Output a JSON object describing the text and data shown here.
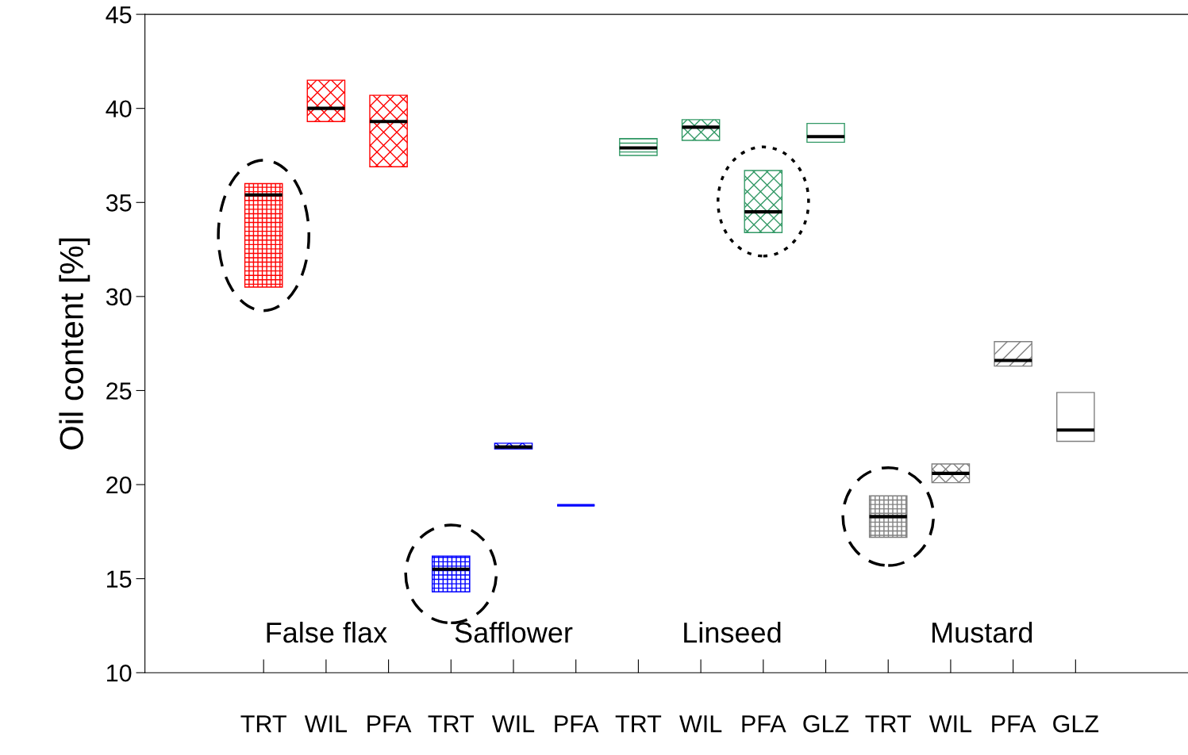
{
  "chart_data": {
    "type": "box",
    "categories": [
      "TRT",
      "WIL",
      "PFA",
      "TRT",
      "WIL",
      "PFA",
      "TRT",
      "WIL",
      "PFA",
      "GLZ",
      "TRT",
      "WIL",
      "PFA",
      "GLZ"
    ],
    "boxes": [
      {
        "low": 30.5,
        "q1": 30.5,
        "median": 35.4,
        "q3": 36.0,
        "high": 36.0
      },
      {
        "low": 39.3,
        "q1": 39.3,
        "median": 40.0,
        "q3": 41.5,
        "high": 41.5
      },
      {
        "low": 36.9,
        "q1": 36.9,
        "median": 39.3,
        "q3": 40.7,
        "high": 40.7
      },
      {
        "low": 14.3,
        "q1": 14.3,
        "median": 15.5,
        "q3": 16.2,
        "high": 16.2
      },
      {
        "low": 21.9,
        "q1": 21.9,
        "median": 22.0,
        "q3": 22.2,
        "high": 22.2
      },
      {
        "low": 18.9,
        "q1": 18.9,
        "median": 18.9,
        "q3": 18.9,
        "high": 18.9
      },
      {
        "low": 37.5,
        "q1": 37.5,
        "median": 37.9,
        "q3": 38.4,
        "high": 38.4
      },
      {
        "low": 38.3,
        "q1": 38.3,
        "median": 39.0,
        "q3": 39.4,
        "high": 39.4
      },
      {
        "low": 33.4,
        "q1": 33.4,
        "median": 34.5,
        "q3": 36.7,
        "high": 36.7
      },
      {
        "low": 38.2,
        "q1": 38.2,
        "median": 38.5,
        "q3": 39.2,
        "high": 39.2
      },
      {
        "low": 17.2,
        "q1": 17.2,
        "median": 18.3,
        "q3": 19.4,
        "high": 19.4
      },
      {
        "low": 20.1,
        "q1": 20.1,
        "median": 20.6,
        "q3": 21.1,
        "high": 21.1
      },
      {
        "low": 26.3,
        "q1": 26.3,
        "median": 26.6,
        "q3": 27.6,
        "high": 27.6
      },
      {
        "low": 22.3,
        "q1": 22.3,
        "median": 22.9,
        "q3": 24.9,
        "high": 24.9
      }
    ],
    "colors": [
      "#ff0000",
      "#ff0000",
      "#ff0000",
      "#0000ff",
      "#0000ff",
      "#0000ff",
      "#339966",
      "#339966",
      "#339966",
      "#339966",
      "#808080",
      "#808080",
      "#808080",
      "#808080"
    ],
    "ylabel": "Oil content [%]",
    "ylim": [
      10,
      45
    ],
    "yticks": [
      10,
      15,
      20,
      25,
      30,
      35,
      40,
      45
    ],
    "annotations": [
      "False flax",
      "Safflower",
      "Linseed",
      "Mustard"
    ],
    "grid": false,
    "legend": false
  }
}
